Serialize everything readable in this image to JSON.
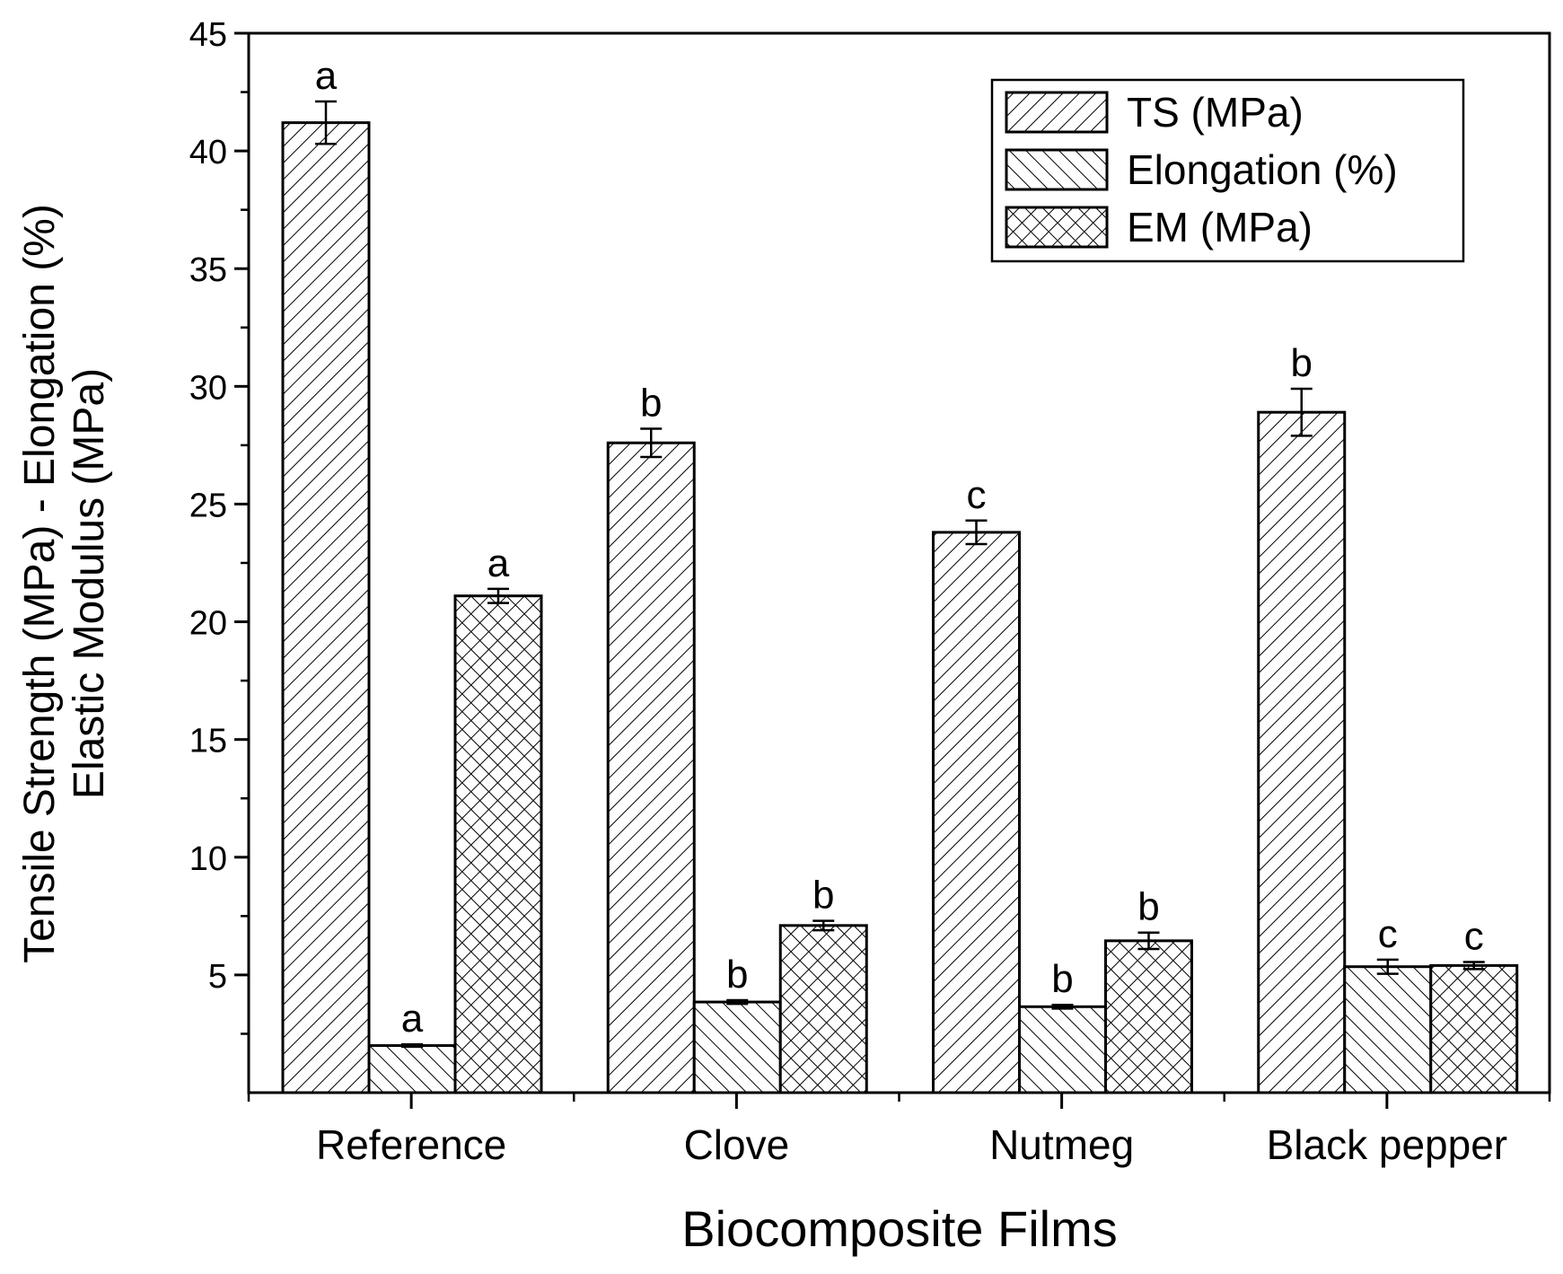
{
  "chart_data": {
    "type": "bar",
    "title": "",
    "xlabel": "Biocomposite Films",
    "ylabel_line1": "Tensile Strength (MPa) - Elongation (%)",
    "ylabel_line2": "Elastic Modulus (MPa)",
    "ylim": [
      0,
      45
    ],
    "yticks": [
      5,
      10,
      15,
      20,
      25,
      30,
      35,
      40,
      45
    ],
    "ytick_labels": [
      "5",
      "10",
      "15",
      "20",
      "25",
      "30",
      "35",
      "40",
      "45"
    ],
    "categories": [
      "Reference",
      "Clove",
      "Nutmeg",
      "Black pepper"
    ],
    "legend_position": "top-right",
    "series": [
      {
        "name": "TS (MPa)",
        "pattern": "forward-diagonal",
        "values": [
          41.2,
          27.6,
          23.8,
          28.9
        ],
        "errors": [
          0.9,
          0.6,
          0.5,
          1.0
        ],
        "letters": [
          "a",
          "b",
          "c",
          "b"
        ]
      },
      {
        "name": "Elongation (%)",
        "pattern": "backward-diagonal",
        "values": [
          2.0,
          3.85,
          3.65,
          5.35
        ],
        "errors": [
          0.05,
          0.08,
          0.08,
          0.3
        ],
        "letters": [
          "a",
          "b",
          "b",
          "c"
        ]
      },
      {
        "name": "EM (MPa)",
        "pattern": "crosshatch",
        "values": [
          21.1,
          7.1,
          6.45,
          5.4
        ],
        "errors": [
          0.3,
          0.2,
          0.35,
          0.15
        ],
        "letters": [
          "a",
          "b",
          "b",
          "c"
        ]
      }
    ]
  },
  "colors": {
    "ink": "#000000",
    "background": "#ffffff"
  }
}
